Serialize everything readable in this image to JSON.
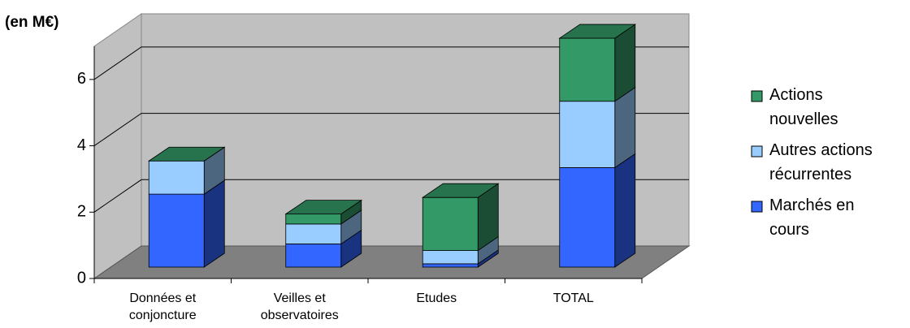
{
  "chart_data": {
    "type": "bar3d_stacked",
    "y_label": "(en M€)",
    "categories": [
      "Données et conjoncture",
      "Veilles et observatoires",
      "Etudes",
      "TOTAL"
    ],
    "series": [
      {
        "name": "Marchés en cours",
        "color": "#3366ff",
        "values": [
          2.2,
          0.7,
          0.1,
          3.0
        ]
      },
      {
        "name": "Autres actions récurrentes",
        "color": "#99ccff",
        "values": [
          1.0,
          0.6,
          0.4,
          2.0
        ]
      },
      {
        "name": "Actions nouvelles",
        "color": "#339966",
        "values": [
          0,
          0.3,
          1.6,
          1.9
        ]
      }
    ],
    "ylim": [
      0,
      7
    ],
    "yticks": [
      0,
      2,
      4,
      6
    ],
    "grid": true
  }
}
